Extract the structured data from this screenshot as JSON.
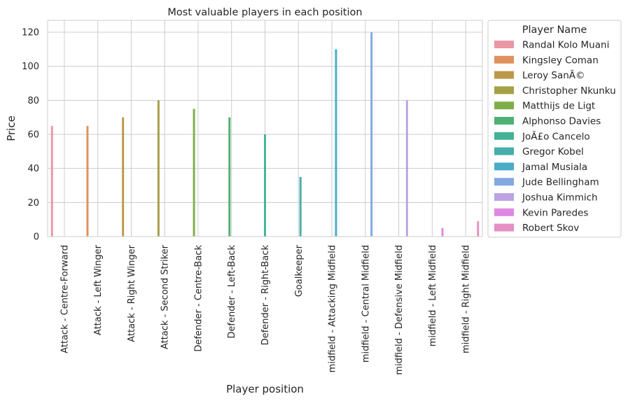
{
  "chart_data": {
    "type": "bar",
    "title": "Most valuable players in each position",
    "xlabel": "Player position",
    "ylabel": "Price",
    "ylim": [
      0,
      127
    ],
    "yticks": [
      0,
      20,
      40,
      60,
      80,
      100,
      120
    ],
    "grid": true,
    "legend_placement": "outside-right",
    "legend_title": "Player Name",
    "categories": [
      "Attack - Centre-Forward",
      "Attack - Left Winger",
      "Attack - Right Winger",
      "Attack - Second Striker",
      "Defender - Centre-Back",
      "Defender - Left-Back",
      "Defender - Right-Back",
      "Goalkeeper",
      "midfield - Attacking Midfield",
      "midfield - Central Midfield",
      "midfield - Defensive Midfield",
      "midfield - Left Midfield",
      "midfield - Right Midfield"
    ],
    "series": [
      {
        "name": "Randal Kolo Muani",
        "color": "#ea96a3",
        "category": "Attack - Centre-Forward",
        "value": 65
      },
      {
        "name": "Kingsley Coman",
        "color": "#e0915e",
        "category": "Attack - Left Winger",
        "value": 65
      },
      {
        "name": "Leroy SanÃ©",
        "color": "#bc9849",
        "category": "Attack - Right Winger",
        "value": 70
      },
      {
        "name": "Christopher Nkunku",
        "color": "#a4a046",
        "category": "Attack - Second Striker",
        "value": 80
      },
      {
        "name": "Matthijs de Ligt",
        "color": "#80ae48",
        "category": "Defender - Centre-Back",
        "value": 75
      },
      {
        "name": "Alphonso Davies",
        "color": "#4fb074",
        "category": "Defender - Left-Back",
        "value": 70
      },
      {
        "name": "JoÃ£o Cancelo",
        "color": "#43b396",
        "category": "Defender - Right-Back",
        "value": 60
      },
      {
        "name": "Gregor Kobel",
        "color": "#45aeaa",
        "category": "Goalkeeper",
        "value": 35
      },
      {
        "name": "Jamal Musiala",
        "color": "#4aacc7",
        "category": "midfield - Attacking Midfield",
        "value": 110
      },
      {
        "name": "Jude Bellingham",
        "color": "#82a8e2",
        "category": "midfield - Central Midfield",
        "value": 120
      },
      {
        "name": "Joshua Kimmich",
        "color": "#bba3e4",
        "category": "midfield - Defensive Midfield",
        "value": 80
      },
      {
        "name": "Kevin Paredes",
        "color": "#df88e2",
        "category": "midfield - Left Midfield",
        "value": 5
      },
      {
        "name": "Robert Skov",
        "color": "#e68fc2",
        "category": "midfield - Right Midfield",
        "value": 9
      }
    ]
  }
}
